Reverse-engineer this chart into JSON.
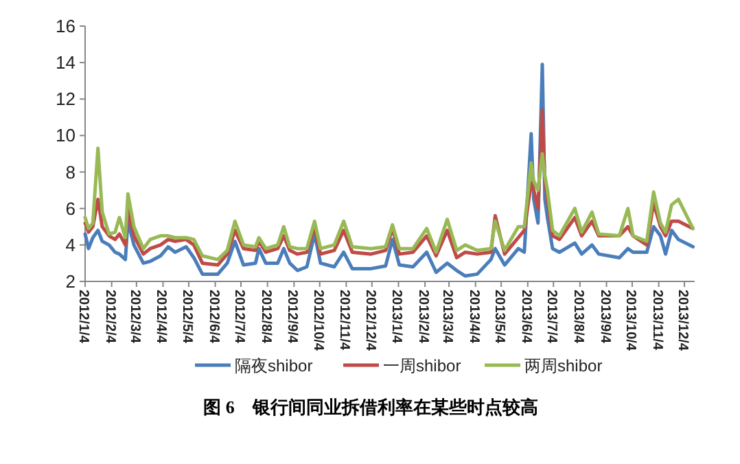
{
  "chart_data": {
    "type": "line",
    "title": "图 6　银行间同业拆借利率在某些时点较高",
    "legend": "bottom",
    "x": [
      "2012-01-04",
      "2012-01-08",
      "2012-01-13",
      "2012-01-19",
      "2012-01-24",
      "2012-02-01",
      "2012-02-08",
      "2012-02-13",
      "2012-02-20",
      "2012-02-23",
      "2012-03-01",
      "2012-03-12",
      "2012-03-20",
      "2012-04-01",
      "2012-04-10",
      "2012-04-18",
      "2012-05-01",
      "2012-05-10",
      "2012-05-20",
      "2012-06-07",
      "2012-06-18",
      "2012-06-27",
      "2012-07-07",
      "2012-07-21",
      "2012-07-25",
      "2012-08-02",
      "2012-08-16",
      "2012-08-23",
      "2012-08-30",
      "2012-09-08",
      "2012-09-19",
      "2012-09-28",
      "2012-10-05",
      "2012-10-21",
      "2012-11-01",
      "2012-11-11",
      "2012-12-03",
      "2012-12-20",
      "2012-12-28",
      "2013-01-05",
      "2013-01-21",
      "2013-02-06",
      "2013-02-17",
      "2013-03-02",
      "2013-03-13",
      "2013-03-23",
      "2013-04-06",
      "2013-04-22",
      "2013-04-27",
      "2013-05-08",
      "2013-05-24",
      "2013-05-31",
      "2013-06-08",
      "2013-06-11",
      "2013-06-16",
      "2013-06-21",
      "2013-06-24",
      "2013-06-27",
      "2013-07-03",
      "2013-07-11",
      "2013-07-29",
      "2013-08-06",
      "2013-08-18",
      "2013-08-26",
      "2013-09-19",
      "2013-09-29",
      "2013-10-05",
      "2013-10-21",
      "2013-10-29",
      "2013-11-06",
      "2013-11-12",
      "2013-11-19",
      "2013-11-27",
      "2013-12-14"
    ],
    "series": [
      {
        "name": "隔夜shibor",
        "color": "#4a7ebb",
        "values": [
          4.6,
          3.8,
          4.4,
          4.8,
          4.2,
          4.0,
          3.6,
          3.5,
          3.2,
          5.3,
          4.0,
          3.0,
          3.1,
          3.4,
          3.9,
          3.6,
          3.9,
          3.3,
          2.4,
          2.4,
          3.0,
          4.2,
          2.9,
          3.0,
          3.8,
          3.0,
          3.0,
          3.8,
          3.0,
          2.6,
          2.8,
          4.6,
          3.0,
          2.8,
          3.6,
          2.7,
          2.7,
          2.85,
          4.3,
          2.9,
          2.8,
          3.6,
          2.5,
          3.0,
          2.6,
          2.3,
          2.4,
          3.2,
          3.8,
          2.9,
          3.8,
          3.6,
          10.1,
          6.5,
          5.2,
          13.9,
          6.5,
          5.5,
          3.8,
          3.6,
          4.1,
          3.5,
          4.0,
          3.5,
          3.3,
          3.8,
          3.6,
          3.6,
          5.0,
          4.5,
          3.5,
          4.8,
          4.3,
          3.9
        ]
      },
      {
        "name": "一周shibor",
        "color": "#be4b48",
        "values": [
          5.2,
          4.7,
          5.0,
          6.5,
          5.0,
          4.5,
          4.3,
          4.6,
          4.0,
          6.0,
          4.5,
          3.5,
          3.8,
          4.0,
          4.3,
          4.2,
          4.3,
          4.0,
          3.0,
          2.9,
          3.5,
          4.8,
          3.8,
          3.7,
          4.2,
          3.6,
          3.8,
          4.5,
          3.7,
          3.5,
          3.6,
          5.0,
          3.5,
          3.7,
          4.8,
          3.6,
          3.5,
          3.7,
          4.9,
          3.5,
          3.6,
          4.5,
          3.4,
          4.8,
          3.3,
          3.6,
          3.5,
          3.6,
          5.6,
          3.5,
          4.4,
          4.8,
          7.4,
          7.0,
          6.0,
          11.4,
          7.5,
          6.5,
          4.5,
          4.3,
          5.5,
          4.5,
          5.3,
          4.5,
          4.5,
          5.0,
          4.5,
          4.0,
          6.3,
          5.0,
          4.5,
          5.3,
          5.3,
          4.9
        ]
      },
      {
        "name": "两周shibor",
        "color": "#98b954",
        "values": [
          5.5,
          4.9,
          5.2,
          9.3,
          5.8,
          4.6,
          4.7,
          5.5,
          4.4,
          6.8,
          5.0,
          3.8,
          4.3,
          4.5,
          4.5,
          4.4,
          4.4,
          4.3,
          3.4,
          3.2,
          3.7,
          5.3,
          4.0,
          3.9,
          4.4,
          3.8,
          4.0,
          5.0,
          3.9,
          3.8,
          3.8,
          5.3,
          3.8,
          4.0,
          5.3,
          3.9,
          3.8,
          3.9,
          5.1,
          3.8,
          3.8,
          4.9,
          3.6,
          5.4,
          3.7,
          4.0,
          3.7,
          3.8,
          5.3,
          3.7,
          5.0,
          5.0,
          8.5,
          7.5,
          7.0,
          9.0,
          7.8,
          7.0,
          4.8,
          4.5,
          6.0,
          4.7,
          5.8,
          4.6,
          4.5,
          6.0,
          4.5,
          4.2,
          6.9,
          5.2,
          4.7,
          6.2,
          6.5,
          4.9
        ]
      }
    ],
    "xlim": [
      "2012-01-04",
      "2013-12-16"
    ],
    "xticks": [
      {
        "value": "2012-01-04",
        "label": "2012/1/4"
      },
      {
        "value": "2012-02-04",
        "label": "2012/2/4"
      },
      {
        "value": "2012-03-04",
        "label": "2012/3/4"
      },
      {
        "value": "2012-04-04",
        "label": "2012/4/4"
      },
      {
        "value": "2012-05-04",
        "label": "2012/5/4"
      },
      {
        "value": "2012-06-04",
        "label": "2012/6/4"
      },
      {
        "value": "2012-07-04",
        "label": "2012/7/4"
      },
      {
        "value": "2012-08-04",
        "label": "2012/8/4"
      },
      {
        "value": "2012-09-04",
        "label": "2012/9/4"
      },
      {
        "value": "2012-10-04",
        "label": "2012/10/4"
      },
      {
        "value": "2012-11-04",
        "label": "2012/11/4"
      },
      {
        "value": "2012-12-04",
        "label": "2012/12/4"
      },
      {
        "value": "2013-01-04",
        "label": "2013/1/4"
      },
      {
        "value": "2013-02-04",
        "label": "2013/2/4"
      },
      {
        "value": "2013-03-04",
        "label": "2013/3/4"
      },
      {
        "value": "2013-04-04",
        "label": "2013/4/4"
      },
      {
        "value": "2013-05-04",
        "label": "2013/5/4"
      },
      {
        "value": "2013-06-04",
        "label": "2013/6/4"
      },
      {
        "value": "2013-07-04",
        "label": "2013/7/4"
      },
      {
        "value": "2013-08-04",
        "label": "2013/8/4"
      },
      {
        "value": "2013-09-04",
        "label": "2013/9/4"
      },
      {
        "value": "2013-10-04",
        "label": "2013/10/4"
      },
      {
        "value": "2013-11-04",
        "label": "2013/11/4"
      },
      {
        "value": "2013-12-04",
        "label": "2013/12/4"
      }
    ],
    "ylim": [
      2,
      16
    ],
    "yticks": [
      2,
      4,
      6,
      8,
      10,
      12,
      14,
      16
    ]
  }
}
